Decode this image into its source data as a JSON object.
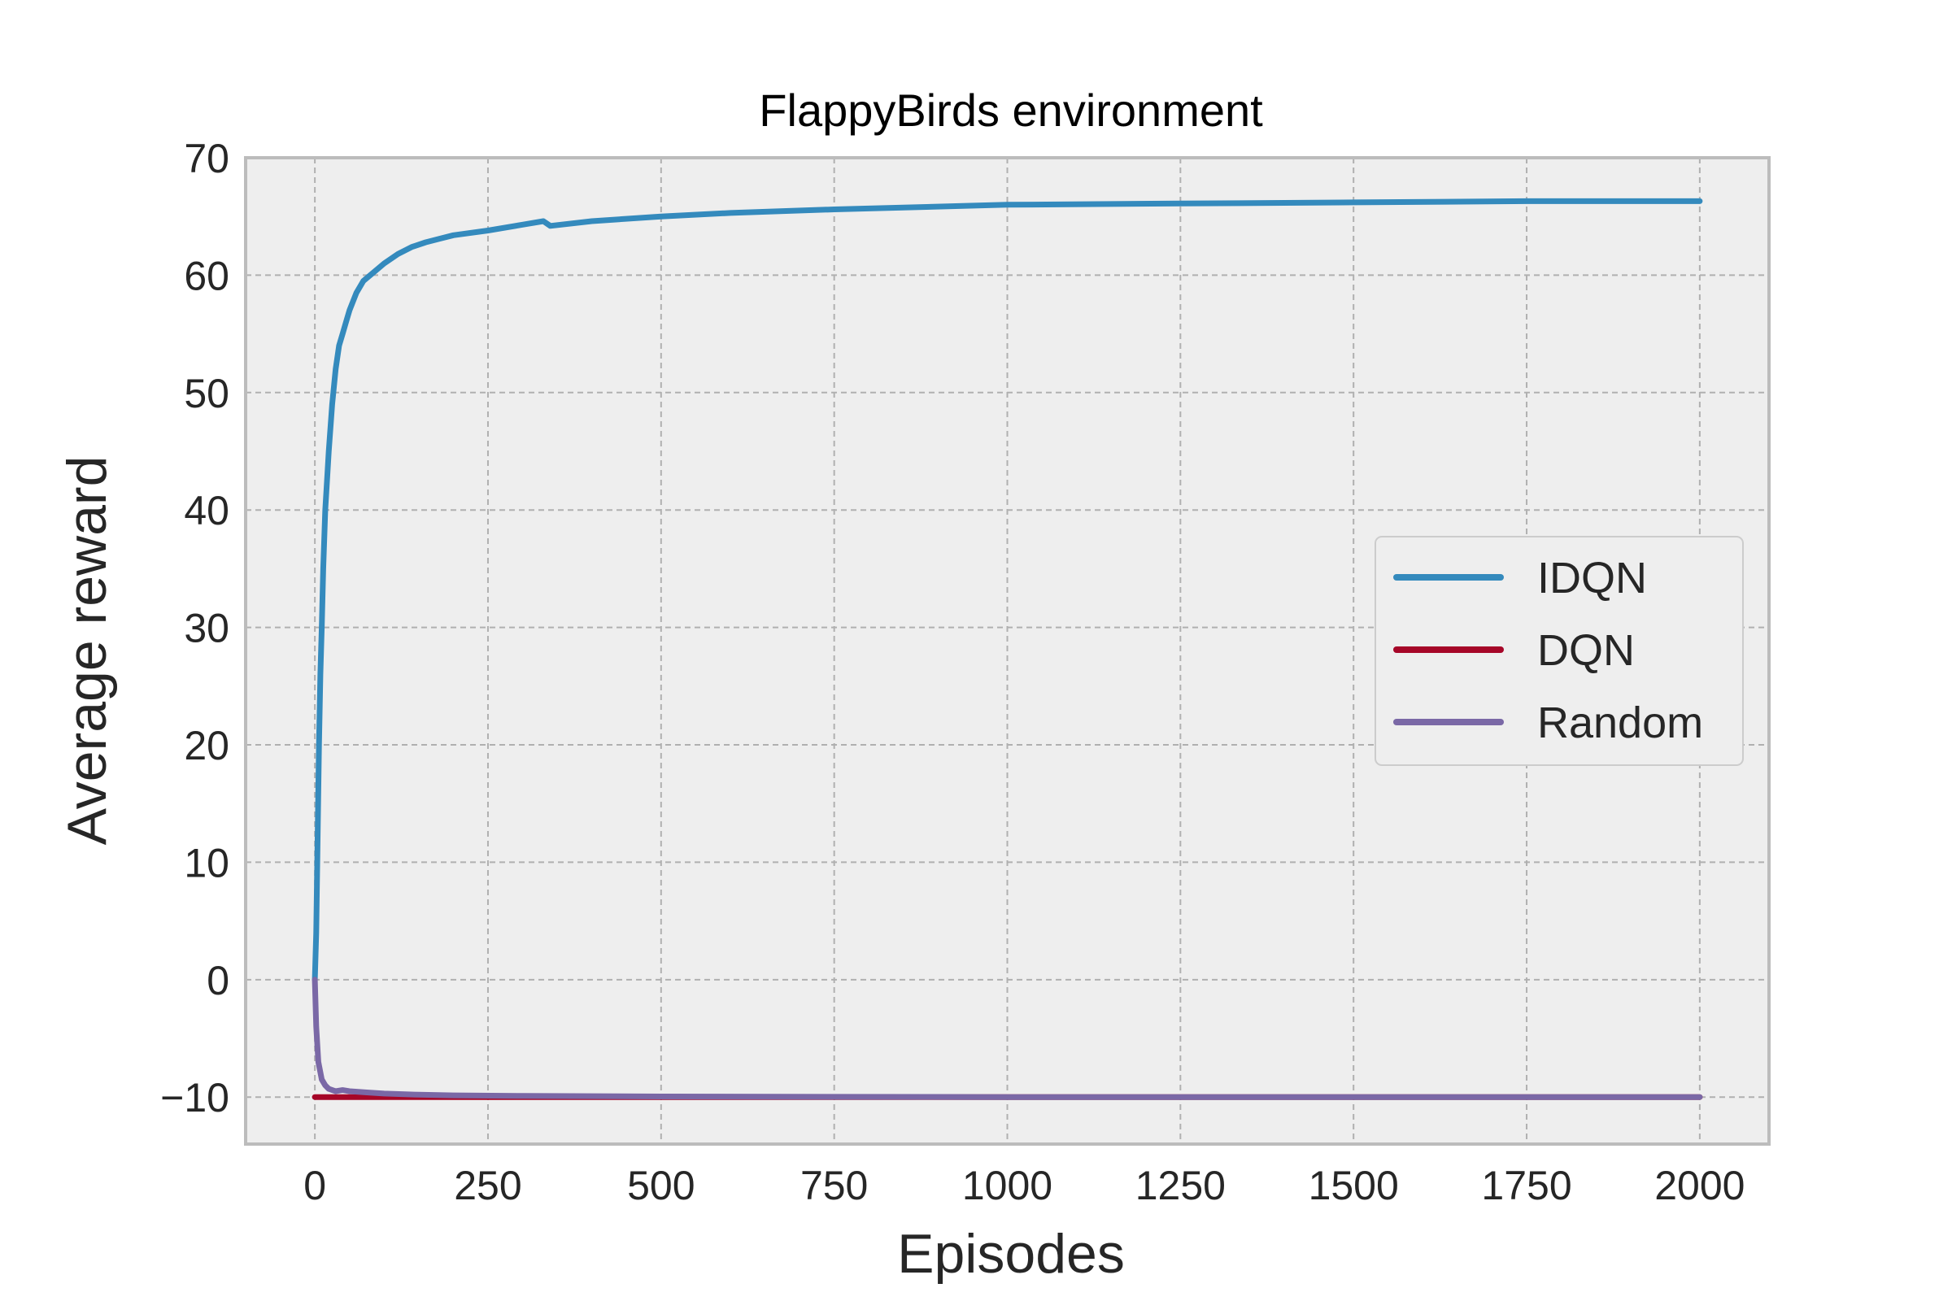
{
  "chart_data": {
    "type": "line",
    "title": "FlappyBirds environment",
    "xlabel": "Episodes",
    "ylabel": "Average reward",
    "xlim": [
      -100,
      2100
    ],
    "ylim": [
      -14,
      70
    ],
    "xticks": [
      0,
      250,
      500,
      750,
      1000,
      1250,
      1500,
      1750,
      2000
    ],
    "yticks": [
      -10,
      0,
      10,
      20,
      30,
      40,
      50,
      60,
      70
    ],
    "xtick_labels": [
      "0",
      "250",
      "500",
      "750",
      "1000",
      "1250",
      "1500",
      "1750",
      "2000"
    ],
    "ytick_labels": [
      "−10",
      "0",
      "10",
      "20",
      "30",
      "40",
      "50",
      "60",
      "70"
    ],
    "grid": true,
    "legend_position": "center-right",
    "series": [
      {
        "name": "IDQN",
        "color": "#348abd",
        "x": [
          0,
          2,
          4,
          6,
          8,
          10,
          12,
          15,
          18,
          20,
          25,
          30,
          35,
          40,
          45,
          50,
          60,
          70,
          80,
          90,
          100,
          120,
          140,
          160,
          180,
          200,
          250,
          300,
          330,
          340,
          400,
          500,
          600,
          750,
          1000,
          1250,
          1500,
          1750,
          2000
        ],
        "y": [
          0,
          4,
          12,
          20,
          26,
          30,
          35,
          40,
          43,
          45,
          49,
          52,
          54,
          55,
          56,
          57,
          58.5,
          59.5,
          60,
          60.5,
          61,
          61.8,
          62.4,
          62.8,
          63.1,
          63.4,
          63.8,
          64.3,
          64.6,
          64.2,
          64.6,
          65.0,
          65.3,
          65.6,
          66.0,
          66.1,
          66.2,
          66.3,
          66.3
        ]
      },
      {
        "name": "DQN",
        "color": "#a60628",
        "x": [
          0,
          50,
          100,
          500,
          1000,
          1500,
          2000
        ],
        "y": [
          -10,
          -10,
          -10,
          -10,
          -10,
          -10,
          -10
        ]
      },
      {
        "name": "Random",
        "color": "#7a68a6",
        "x": [
          0,
          2,
          5,
          10,
          15,
          20,
          30,
          40,
          50,
          75,
          100,
          150,
          200,
          300,
          500,
          1000,
          1500,
          2000
        ],
        "y": [
          0,
          -4,
          -7,
          -8.5,
          -9,
          -9.3,
          -9.5,
          -9.4,
          -9.5,
          -9.6,
          -9.7,
          -9.8,
          -9.85,
          -9.9,
          -9.95,
          -10,
          -10,
          -10
        ]
      }
    ]
  }
}
